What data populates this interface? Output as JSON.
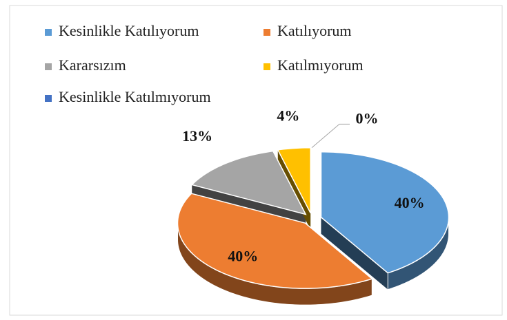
{
  "chart_data": {
    "type": "pie",
    "categories": [
      "Kesinlikle Katılıyorum",
      "Katılıyorum",
      "Kararsızım",
      "Katılmıyorum",
      "Kesinlikle Katılmıyorum"
    ],
    "values": [
      40,
      40,
      13,
      4,
      0
    ],
    "value_labels": [
      "40%",
      "40%",
      "13%",
      "4%",
      "0%"
    ],
    "colors": [
      "#5b9bd5",
      "#ed7d31",
      "#a5a5a5",
      "#ffc000",
      "#4472c4"
    ],
    "legend": "top"
  }
}
